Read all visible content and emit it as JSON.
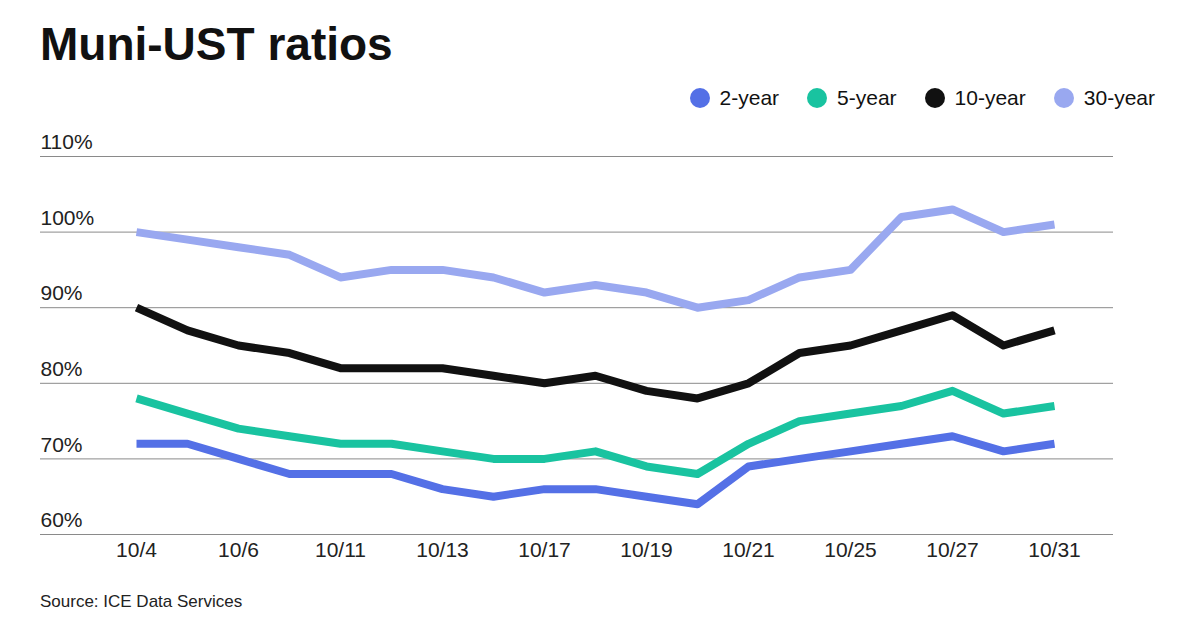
{
  "chart_data": {
    "type": "line",
    "title": "Muni-UST ratios",
    "source": "Source: ICE Data Services",
    "categories": [
      "10/4",
      null,
      "10/6",
      null,
      "10/11",
      null,
      "10/13",
      null,
      "10/17",
      null,
      "10/19",
      null,
      "10/21",
      null,
      "10/25",
      null,
      "10/27",
      null,
      "10/31"
    ],
    "series": [
      {
        "name": "2-year",
        "color": "#5470e6",
        "values": [
          72,
          72,
          70,
          68,
          68,
          68,
          66,
          65,
          66,
          66,
          65,
          64,
          69,
          70,
          71,
          72,
          73,
          71,
          72
        ]
      },
      {
        "name": "5-year",
        "color": "#19c3a0",
        "values": [
          78,
          76,
          74,
          73,
          72,
          72,
          71,
          70,
          70,
          71,
          69,
          68,
          72,
          75,
          76,
          77,
          79,
          76,
          77
        ]
      },
      {
        "name": "10-year",
        "color": "#111111",
        "values": [
          90,
          87,
          85,
          84,
          82,
          82,
          82,
          81,
          80,
          81,
          79,
          78,
          80,
          84,
          85,
          87,
          89,
          85,
          87
        ]
      },
      {
        "name": "30-year",
        "color": "#99a8f0",
        "values": [
          100,
          99,
          98,
          97,
          94,
          95,
          95,
          94,
          92,
          93,
          92,
          90,
          91,
          94,
          95,
          102,
          103,
          100,
          101
        ]
      }
    ],
    "ylim": [
      60,
      110
    ],
    "yticks": [
      {
        "value": 60,
        "label": "60%"
      },
      {
        "value": 70,
        "label": "70%"
      },
      {
        "value": 80,
        "label": "80%"
      },
      {
        "value": 90,
        "label": "90%"
      },
      {
        "value": 100,
        "label": "100%"
      },
      {
        "value": 110,
        "label": "110%"
      }
    ],
    "grid": true,
    "legend": "top-right"
  }
}
